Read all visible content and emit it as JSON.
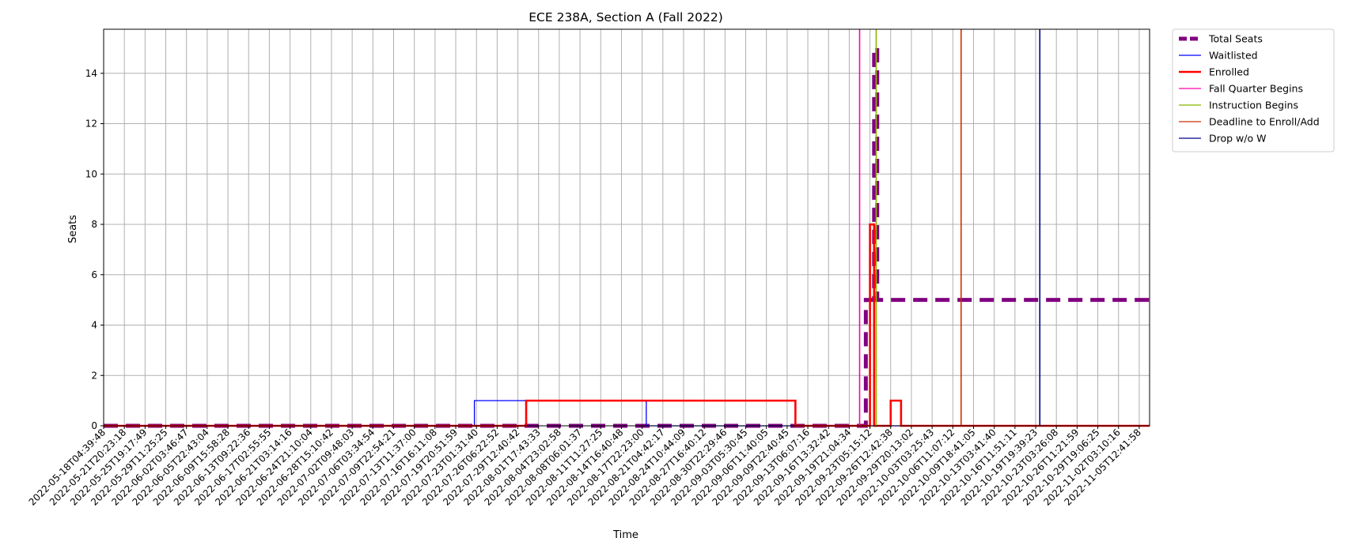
{
  "chart_data": {
    "type": "line",
    "title": "ECE 238A, Section A (Fall 2022)",
    "xlabel": "Time",
    "ylabel": "Seats",
    "ylim": [
      0,
      15.75
    ],
    "yticks": [
      0,
      2,
      4,
      6,
      8,
      10,
      12,
      14
    ],
    "grid": true,
    "legend_position": "outside-top-right",
    "categories": [
      "2022-05-18T04:39:48",
      "2022-05-21T20:23:18",
      "2022-05-25T19:17:49",
      "2022-05-29T11:25:25",
      "2022-06-02T03:46:47",
      "2022-06-05T22:43:04",
      "2022-06-09T15:58:28",
      "2022-06-13T09:22:36",
      "2022-06-17T02:55:55",
      "2022-06-21T03:14:16",
      "2022-06-24T21:10:04",
      "2022-06-28T15:10:42",
      "2022-07-02T09:48:03",
      "2022-07-06T03:34:54",
      "2022-07-09T22:54:21",
      "2022-07-13T11:37:00",
      "2022-07-16T16:11:08",
      "2022-07-19T20:51:59",
      "2022-07-23T01:31:40",
      "2022-07-26T06:22:52",
      "2022-07-29T12:40:42",
      "2022-08-01T17:43:33",
      "2022-08-04T23:02:58",
      "2022-08-08T06:01:37",
      "2022-08-11T11:27:25",
      "2022-08-14T16:40:48",
      "2022-08-17T22:23:00",
      "2022-08-21T04:42:17",
      "2022-08-24T10:44:09",
      "2022-08-27T16:40:12",
      "2022-08-30T22:29:46",
      "2022-09-03T05:30:45",
      "2022-09-06T11:40:05",
      "2022-09-09T22:40:45",
      "2022-09-13T06:07:16",
      "2022-09-16T13:32:42",
      "2022-09-19T21:04:34",
      "2022-09-23T05:15:12",
      "2022-09-26T12:42:38",
      "2022-09-29T20:13:02",
      "2022-10-03T03:25:43",
      "2022-10-06T11:07:12",
      "2022-10-09T18:41:05",
      "2022-10-13T03:41:40",
      "2022-10-16T11:51:11",
      "2022-10-19T19:39:23",
      "2022-10-23T03:26:08",
      "2022-10-26T11:21:59",
      "2022-10-29T19:06:25",
      "2022-11-02T03:10:16",
      "2022-11-05T12:41:58"
    ],
    "series": [
      {
        "name": "Total Seats",
        "color": "#800080",
        "style": "dashed-thick",
        "points": [
          [
            0,
            0
          ],
          [
            36.8,
            0
          ],
          [
            36.8,
            5
          ],
          [
            37.2,
            5
          ],
          [
            37.2,
            15
          ],
          [
            37.35,
            15
          ],
          [
            37.35,
            5
          ],
          [
            50.5,
            5
          ]
        ]
      },
      {
        "name": "Waitlisted",
        "color": "#0000ff",
        "style": "thin",
        "points": [
          [
            0,
            0
          ],
          [
            17.9,
            0
          ],
          [
            17.9,
            1
          ],
          [
            26.2,
            1
          ],
          [
            26.2,
            0
          ],
          [
            50.5,
            0
          ]
        ]
      },
      {
        "name": "Enrolled",
        "color": "#ff0000",
        "style": "thick",
        "points": [
          [
            0,
            0
          ],
          [
            20.4,
            0
          ],
          [
            20.4,
            1
          ],
          [
            33.4,
            1
          ],
          [
            33.4,
            0
          ],
          [
            37.0,
            0
          ],
          [
            37.0,
            8
          ],
          [
            37.2,
            8
          ],
          [
            37.2,
            0
          ],
          [
            38.0,
            0
          ],
          [
            38.0,
            1
          ],
          [
            38.5,
            1
          ],
          [
            38.5,
            0
          ],
          [
            50.5,
            0
          ]
        ]
      }
    ],
    "vlines": [
      {
        "name": "Fall Quarter Begins",
        "color": "#ff00aa",
        "x": 36.5
      },
      {
        "name": "Instruction Begins",
        "color": "#88b800",
        "x": 37.3
      },
      {
        "name": "Deadline to Enroll/Add",
        "color": "#cc3300",
        "x": 41.4
      },
      {
        "name": "Drop w/o W",
        "color": "#000088",
        "x": 45.2
      }
    ]
  }
}
